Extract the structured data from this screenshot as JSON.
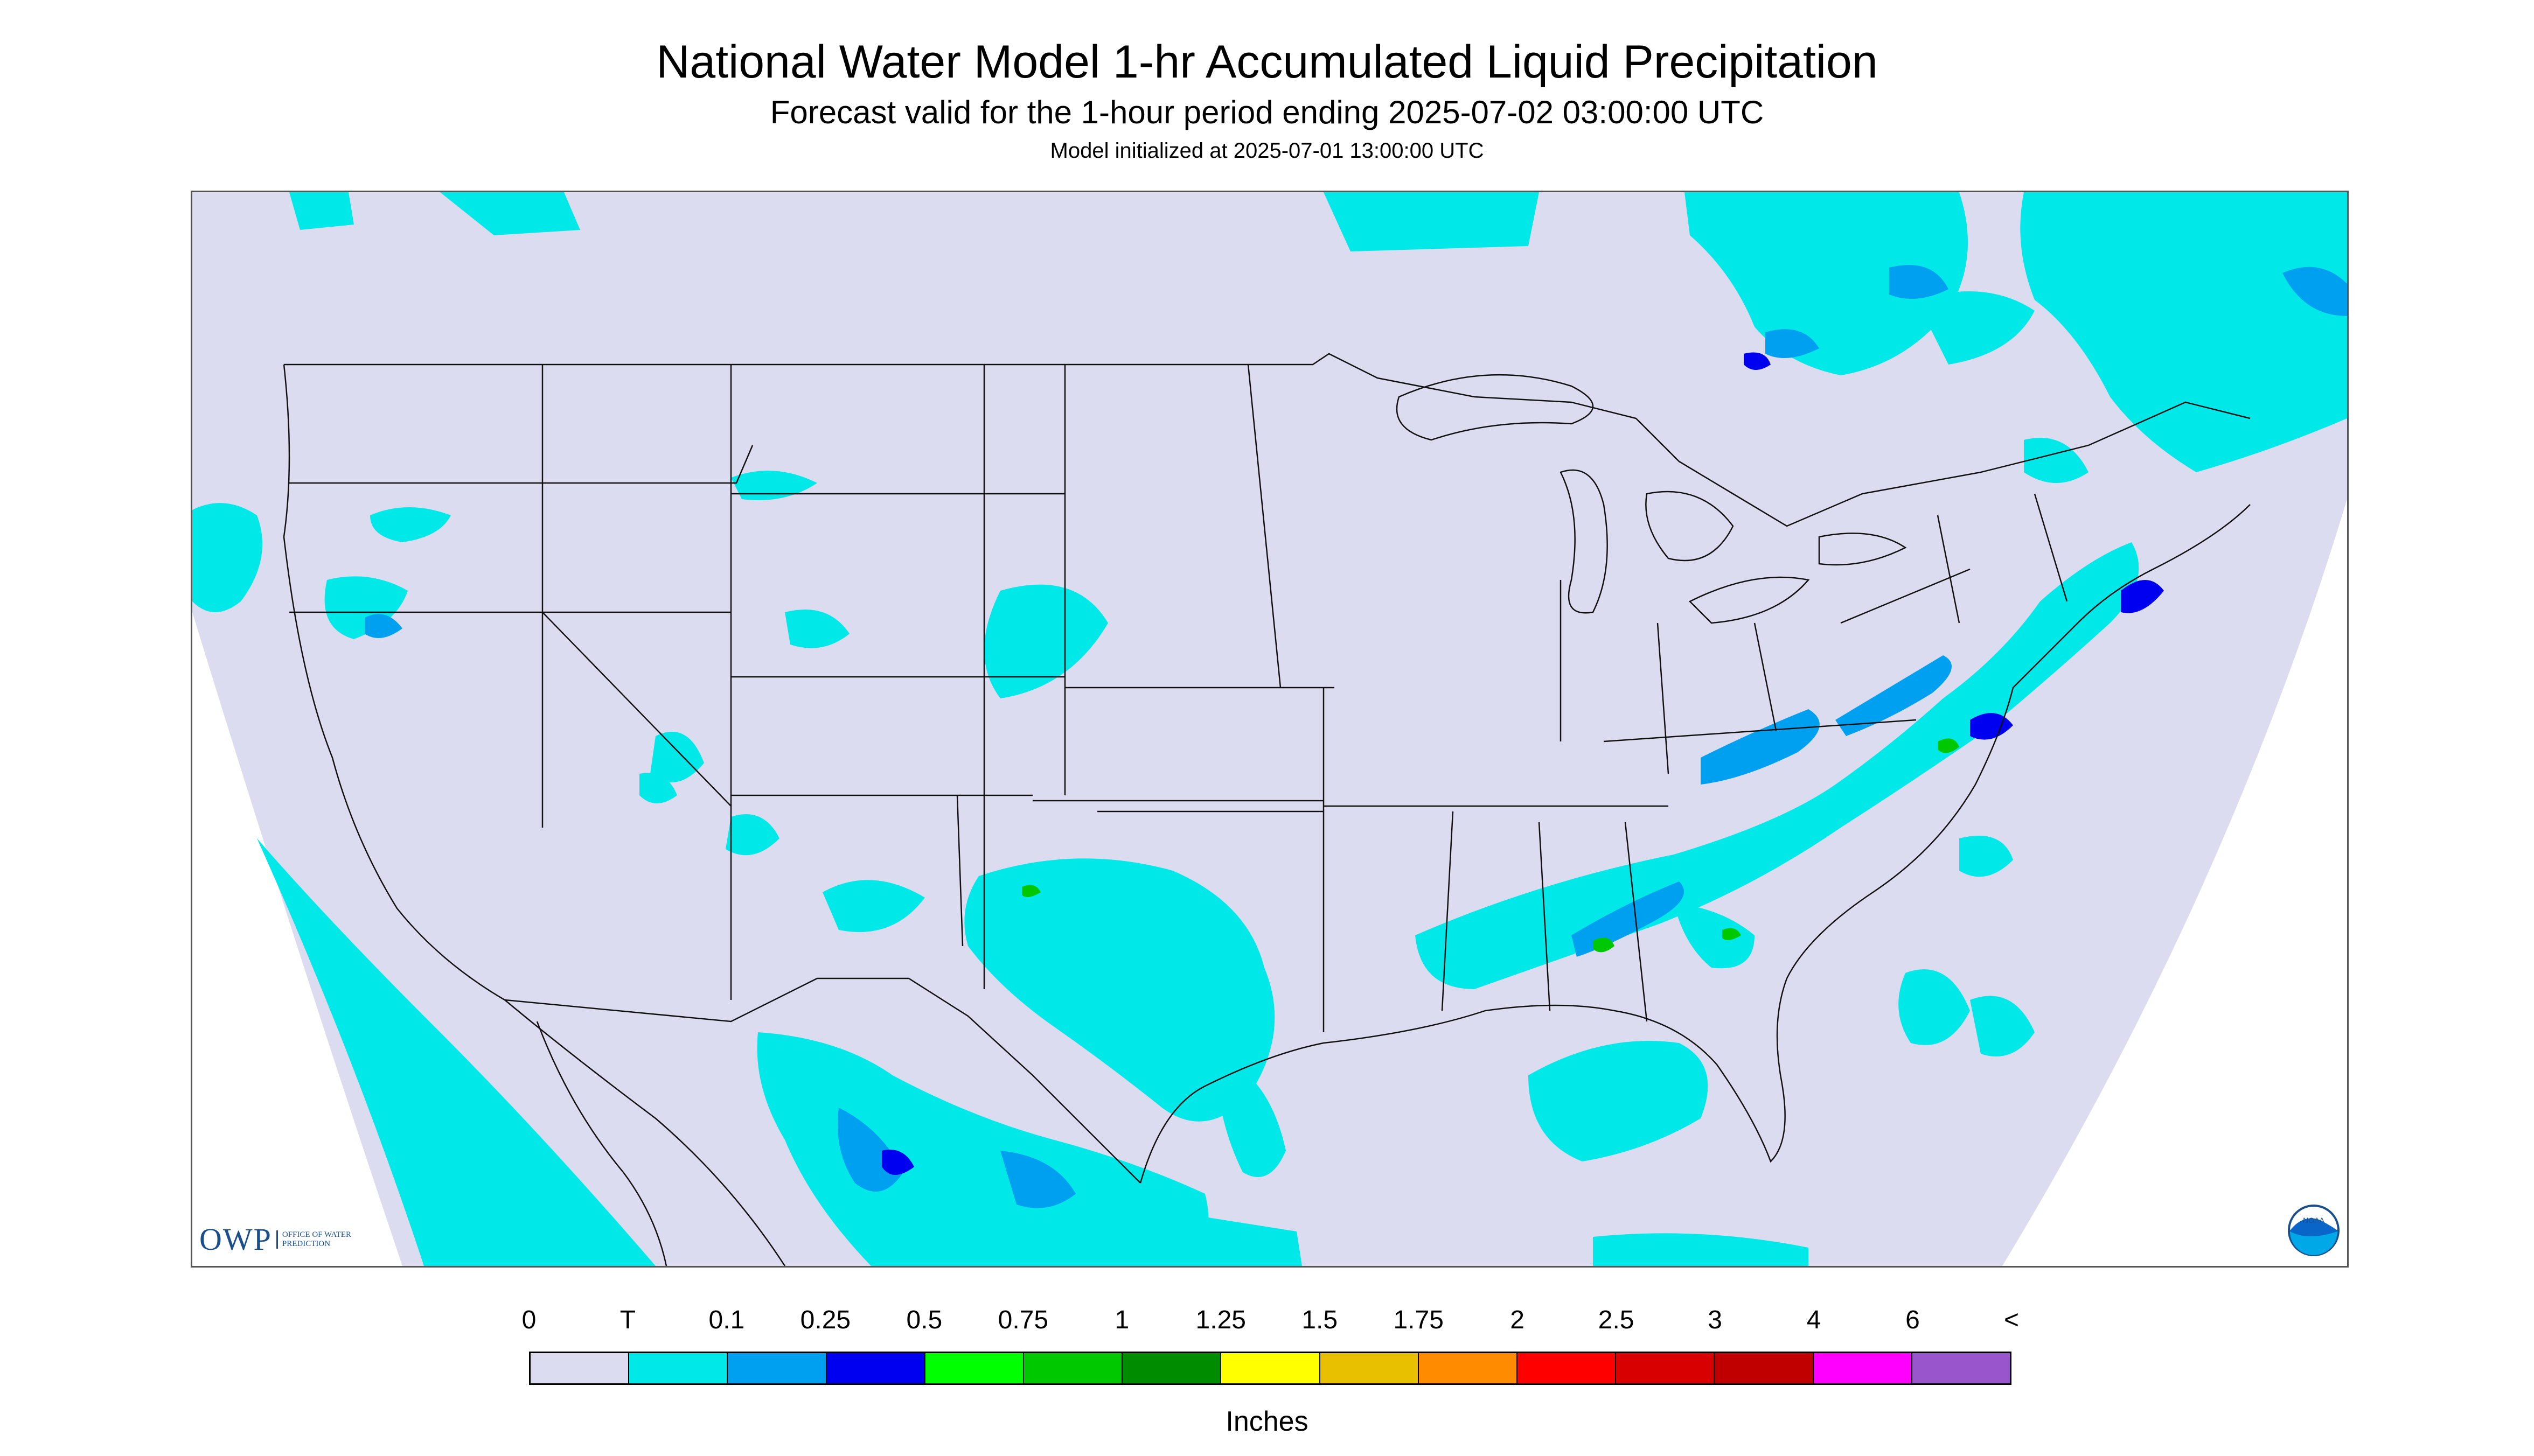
{
  "header": {
    "title": "National Water Model 1-hr Accumulated Liquid Precipitation",
    "subtitle": "Forecast valid for the 1-hour period ending 2025-07-02 03:00:00 UTC",
    "init": "Model initialized at 2025-07-01 13:00:00 UTC"
  },
  "logos": {
    "owp_mark": "OWP",
    "owp_text": "OFFICE OF WATER PREDICTION",
    "noaa_text": "NOAA"
  },
  "legend": {
    "units": "Inches",
    "labels": [
      "0",
      "T",
      "0.1",
      "0.25",
      "0.5",
      "0.75",
      "1",
      "1.25",
      "1.5",
      "1.75",
      "2",
      "2.5",
      "3",
      "4",
      "6",
      "<"
    ],
    "colors": [
      "#dcdcf0",
      "#00e8e8",
      "#00a0f0",
      "#0000f0",
      "#00ff00",
      "#00c800",
      "#008c00",
      "#ffff00",
      "#e8c000",
      "#ff8c00",
      "#ff0000",
      "#d80000",
      "#c00000",
      "#ff00ff",
      "#9955cc"
    ]
  },
  "map": {
    "background": "#dcdcf0",
    "outside_domain": "#ffffff",
    "trace_color": "#00e8e8",
    "light_color": "#00a0f0",
    "heavy_color": "#0000f0",
    "green_color": "#00c800",
    "border_color": "#111111"
  }
}
